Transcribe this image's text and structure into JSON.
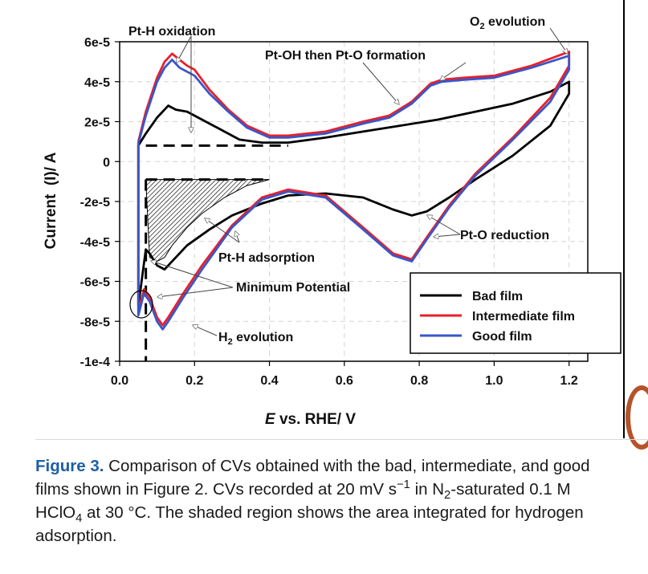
{
  "chart_data": {
    "type": "line",
    "xlabel_italic": "E",
    "xlabel_rest": " vs. RHE/ V",
    "ylabel": "Current  (I)/ A",
    "xlim": [
      0.0,
      1.25
    ],
    "ylim": [
      -0.0001,
      6e-05
    ],
    "x_ticks": [
      0.0,
      0.2,
      0.4,
      0.6,
      0.8,
      1.0,
      1.2
    ],
    "x_tick_labels": [
      "0.0",
      "0.2",
      "0.4",
      "0.6",
      "0.8",
      "1.0",
      "1.2"
    ],
    "y_ticks": [
      6e-05,
      4e-05,
      2e-05,
      0,
      -2e-05,
      -4e-05,
      -6e-05,
      -8e-05,
      -0.0001
    ],
    "y_tick_labels": [
      "6e-5",
      "4e-5",
      "2e-5",
      "0",
      "-2e-5",
      "-4e-5",
      "-6e-5",
      "-8e-5",
      "-1e-4"
    ],
    "grid": true,
    "legend_position": "bottom-right",
    "series": [
      {
        "name": "Bad film",
        "color": "#000000",
        "x": [
          0.05,
          0.07,
          0.1,
          0.13,
          0.15,
          0.18,
          0.22,
          0.27,
          0.32,
          0.38,
          0.45,
          0.55,
          0.65,
          0.75,
          0.85,
          0.95,
          1.05,
          1.15,
          1.2,
          1.2,
          1.15,
          1.05,
          0.95,
          0.88,
          0.82,
          0.78,
          0.73,
          0.65,
          0.55,
          0.45,
          0.38,
          0.3,
          0.24,
          0.18,
          0.14,
          0.12,
          0.1,
          0.08,
          0.07,
          0.06,
          0.05,
          0.05
        ],
        "y": [
          8e-06,
          1.4e-05,
          2.2e-05,
          2.8e-05,
          2.6e-05,
          2.5e-05,
          2.1e-05,
          1.6e-05,
          1.1e-05,
          9.5e-06,
          9.5e-06,
          1.2e-05,
          1.5e-05,
          1.8e-05,
          2.1e-05,
          2.5e-05,
          2.9e-05,
          3.5e-05,
          4e-05,
          3.4e-05,
          1.8e-05,
          3e-06,
          -9e-06,
          -1.8e-05,
          -2.5e-05,
          -2.7e-05,
          -2.4e-05,
          -1.8e-05,
          -1.6e-05,
          -1.7e-05,
          -2.1e-05,
          -2.7e-05,
          -3.4e-05,
          -4.2e-05,
          -5e-05,
          -5.4e-05,
          -5.2e-05,
          -4.6e-05,
          -4.4e-05,
          -5.8e-05,
          -7.2e-05,
          8e-06
        ]
      },
      {
        "name": "Intermediate film",
        "color": "#e8202a",
        "x": [
          0.05,
          0.07,
          0.1,
          0.12,
          0.14,
          0.16,
          0.18,
          0.2,
          0.24,
          0.29,
          0.34,
          0.4,
          0.45,
          0.55,
          0.65,
          0.72,
          0.78,
          0.83,
          0.86,
          0.92,
          1.0,
          1.1,
          1.2,
          1.2,
          1.15,
          1.05,
          0.95,
          0.88,
          0.82,
          0.78,
          0.73,
          0.65,
          0.55,
          0.45,
          0.38,
          0.3,
          0.22,
          0.17,
          0.13,
          0.115,
          0.1,
          0.08,
          0.065,
          0.05,
          0.05
        ],
        "y": [
          1e-05,
          2.5e-05,
          4.2e-05,
          5e-05,
          5.4e-05,
          5.1e-05,
          4.8e-05,
          4.6e-05,
          3.6e-05,
          2.6e-05,
          1.8e-05,
          1.3e-05,
          1.3e-05,
          1.5e-05,
          2e-05,
          2.3e-05,
          3e-05,
          3.9e-05,
          4.1e-05,
          4.2e-05,
          4.3e-05,
          4.8e-05,
          5.5e-05,
          4.8e-05,
          3.2e-05,
          1.2e-05,
          -6e-06,
          -2.2e-05,
          -3.8e-05,
          -4.9e-05,
          -4.6e-05,
          -3.3e-05,
          -1.7e-05,
          -1.4e-05,
          -1.8e-05,
          -3.2e-05,
          -5.2e-05,
          -6.6e-05,
          -7.8e-05,
          -8.2e-05,
          -7.8e-05,
          -6.8e-05,
          -6.4e-05,
          -7.5e-05,
          1e-05
        ]
      },
      {
        "name": "Good film",
        "color": "#3a56c8",
        "x": [
          0.05,
          0.07,
          0.1,
          0.12,
          0.14,
          0.16,
          0.18,
          0.2,
          0.24,
          0.29,
          0.34,
          0.4,
          0.45,
          0.55,
          0.65,
          0.72,
          0.78,
          0.83,
          0.86,
          0.92,
          1.0,
          1.1,
          1.2,
          1.2,
          1.15,
          1.05,
          0.95,
          0.88,
          0.82,
          0.78,
          0.73,
          0.65,
          0.55,
          0.45,
          0.38,
          0.3,
          0.22,
          0.17,
          0.13,
          0.115,
          0.1,
          0.08,
          0.065,
          0.05,
          0.05
        ],
        "y": [
          9e-06,
          2.3e-05,
          4e-05,
          4.7e-05,
          5.1e-05,
          4.7e-05,
          4.5e-05,
          4.3e-05,
          3.4e-05,
          2.5e-05,
          1.7e-05,
          1.2e-05,
          1.2e-05,
          1.4e-05,
          1.9e-05,
          2.2e-05,
          2.9e-05,
          3.8e-05,
          4e-05,
          4.1e-05,
          4.2e-05,
          4.7e-05,
          5.3e-05,
          4.6e-05,
          3e-05,
          1.1e-05,
          -7e-06,
          -2.3e-05,
          -3.9e-05,
          -5e-05,
          -4.7e-05,
          -3.4e-05,
          -1.8e-05,
          -1.5e-05,
          -1.9e-05,
          -3.3e-05,
          -5.4e-05,
          -6.8e-05,
          -8e-05,
          -8.4e-05,
          -8e-05,
          -7e-05,
          -6.6e-05,
          -7.7e-05,
          9e-06
        ]
      }
    ],
    "annotations": {
      "pt_h_oxidation": "Pt-H oxidation",
      "o2_evolution_pre": "O",
      "o2_evolution_sub": "2",
      "o2_evolution_post": " evolution",
      "pt_oh_formation": "Pt-OH then Pt-O formation",
      "pt_h_adsorption": "Pt-H adsorption",
      "pt_o_reduction": "Pt-O reduction",
      "minimum_potential": "Minimum Potential",
      "h2_evolution_pre": "H",
      "h2_evolution_sub": "2",
      "h2_evolution_post": " evolution"
    }
  },
  "caption": {
    "label": "Figure 3.",
    "text_1": " Comparison of CVs obtained with the bad, intermediate, and good films shown in Figure 2. CVs recorded at 20 mV s",
    "sup_1": "−1",
    "text_2": " in N",
    "sub_1": "2",
    "text_3": "-saturated 0.1 M HClO",
    "sub_2": "4",
    "text_4": " at 30 °C. The shaded region shows the area integrated for hydrogen adsorption."
  }
}
